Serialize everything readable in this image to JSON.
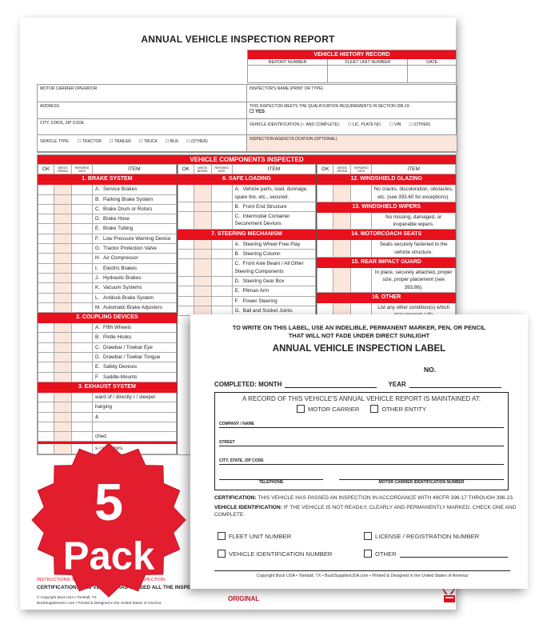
{
  "report": {
    "title": "ANNUAL VEHICLE INSPECTION REPORT",
    "history": {
      "title": "VEHICLE HISTORY RECORD",
      "columns": [
        "REPORT NUMBER",
        "FLEET UNIT NUMBER",
        "DATE"
      ]
    },
    "info": {
      "motor_carrier": "MOTOR CARRIER OPERATOR",
      "inspector_name": "INSPECTOR'S NAME (PRINT OR TYPE)",
      "address": "ADDRESS",
      "qualification": "THIS INSPECTOR MEETS THE QUALIFICATION REQUIREMENTS IN SECTION 396.19.",
      "yes": "YES",
      "city": "CITY, STATE, ZIP CODE",
      "vehicle_id": "VEHICLE IDENTIFICATION (✓ AND COMPLETE):",
      "vehicle_id_options": [
        "LIC. PLATE NO.",
        "VIN",
        "(OTHER)"
      ],
      "vehicle_type": "VEHICLE TYPE:",
      "vehicle_type_options": [
        "TRACTOR",
        "TRAILER",
        "TRUCK",
        "BUS",
        "(OTHER)"
      ],
      "agency": "INSPECTION AGENCY/LOCATION (OPTIONAL)"
    },
    "components": {
      "title": "VEHICLE COMPONENTS INSPECTED",
      "headers": [
        "OK",
        "NEEDS REPAIR",
        "REPAIRED DATE",
        "ITEM"
      ],
      "columns": [
        [
          {
            "h": "1. BRAKE SYSTEM"
          },
          {
            "l": "A.",
            "t": "Service Brakes"
          },
          {
            "l": "B.",
            "t": "Parking Brake System"
          },
          {
            "l": "C.",
            "t": "Brake Drum or Rotors"
          },
          {
            "l": "D.",
            "t": "Brake Hose"
          },
          {
            "l": "E.",
            "t": "Brake Tubing"
          },
          {
            "l": "F.",
            "t": "Low Pressure Warning Device"
          },
          {
            "l": "G.",
            "t": "Tractor Protection Valve"
          },
          {
            "l": "H.",
            "t": "Air Compressor"
          },
          {
            "l": "I.",
            "t": "Electric Brakes"
          },
          {
            "l": "J.",
            "t": "Hydraulic Brakes"
          },
          {
            "l": "K.",
            "t": "Vacuum Systems"
          },
          {
            "l": "L.",
            "t": "Antilock Brake System"
          },
          {
            "l": "M.",
            "t": "Automatic Brake Adjusters"
          },
          {
            "h": "2. COUPLING DEVICES"
          },
          {
            "l": "A.",
            "t": "Fifth Wheels"
          },
          {
            "l": "B.",
            "t": "Pintle Hooks"
          },
          {
            "l": "C.",
            "t": "Drawbar / Towbar Eye"
          },
          {
            "l": "D.",
            "t": "Drawbar / Towbar Tongue"
          },
          {
            "l": "E.",
            "t": "Safety Devices"
          },
          {
            "l": "F.",
            "t": "Saddle-Mounts"
          },
          {
            "h": "3. EXHAUST SYSTEM"
          },
          {
            "l": "",
            "t": "ward of / directly r / sleeper"
          },
          {
            "l": "",
            "t": "harging"
          },
          {
            "l": "",
            "t": "&"
          },
          {
            "l": "",
            "t": ""
          },
          {
            "l": "",
            "t": "ched."
          },
          {
            "h": ""
          },
          {
            "l": "",
            "t": "s / reflectors"
          }
        ],
        [
          {
            "h": "6. SAFE LOADING"
          },
          {
            "l": "A.",
            "t": "Vehicle parts, load, dunnage, spare tire, etc., secured."
          },
          {
            "l": "B.",
            "t": "Front End Structure"
          },
          {
            "l": "C.",
            "t": "Intermodal Container Securement Devices"
          },
          {
            "h": "7. STEERING MECHANISM"
          },
          {
            "l": "A.",
            "t": "Steering Wheel Free Play"
          },
          {
            "l": "B.",
            "t": "Steering Column"
          },
          {
            "l": "C.",
            "t": "Front Axle Beam / All Other Steering Components"
          },
          {
            "l": "D.",
            "t": "Steering Gear Box"
          },
          {
            "l": "E.",
            "t": "Pitman Arm"
          },
          {
            "l": "F.",
            "t": "Power Steering"
          },
          {
            "l": "G.",
            "t": "Ball and Socket Joints"
          }
        ],
        [
          {
            "h": "12. WINDSHIELD GLAZING"
          },
          {
            "c": "No cracks, discoloration, obstacles, etc. (see 393.60 for exceptions)."
          },
          {
            "h": "13. WINDSHIELD WIPERS"
          },
          {
            "c": "No missing, damaged, or inoperable wipers."
          },
          {
            "h": "14. MOTORCOACH SEATS"
          },
          {
            "c": "Seats securely fastened to the vehicle structure."
          },
          {
            "h": "15. REAR IMPACT GUARD"
          },
          {
            "c": "In place, securely attached, proper size, proper placement (see 393.86)."
          },
          {
            "h": "16. OTHER"
          },
          {
            "c": "List any other condition(s) which may prevent safe"
          }
        ]
      ]
    },
    "instructions": "INSTRUCTIONS: MARK COLU...RIES TO VERIFY INSPECTION:",
    "certification": "CERTIFICATION: THIS VEHICLE HAS PASSED ALL THE INSPECTION ITEMS FOR THE ANNUAL VEHICLE INSPECTION IN ACCORDANCE WITH 49 CFR PART 396.",
    "copyright1": "© Copyright Buck USA • Tomball, TX",
    "copyright2": "BuckSuppliesUSA.com • Printed & Designed in the United States of America",
    "copy_label": "ORIGINAL"
  },
  "label": {
    "warning1": "TO WRITE ON THIS LABEL, USE AN INDELIBLE, PERMANENT MARKER, PEN, OR PENCIL",
    "warning2": "THAT WILL NOT FADE UNDER DIRECT SUNLIGHT",
    "title": "ANNUAL VEHICLE INSPECTION LABEL",
    "no": "NO.",
    "completed_month": "COMPLETED: MONTH",
    "year": "YEAR",
    "record_heading": "A RECORD OF THIS VEHICLE'S ANNUAL VEHICLE REPORT IS MAINTAINED AT:",
    "motor_carrier": "MOTOR CARRIER",
    "other_entity": "OTHER ENTITY",
    "company": "COMPANY / NAME",
    "street": "STREET",
    "city": "CITY, STATE, ZIP CODE",
    "telephone": "TELEPHONE",
    "mc_id": "MOTOR CARRIER IDENTIFICATION NUMBER",
    "cert_label": "CERTIFICATION:",
    "cert_text": " THIS VEHICLE HAS PASSED AN INSPECTION IN ACCORDANCE WITH 49CFR 396.17 THROUGH 396.23.",
    "vid_label": "VEHICLE IDENTIFICATION:",
    "vid_text": " IF THE VEHICLE IS NOT READILY, CLEARLY AND PERMANENTLY MARKED, CHECK ONE AND COMPLETE.",
    "options": [
      "FLEET UNIT NUMBER",
      "LICENSE / REGISTRATION NUMBER",
      "VEHICLE IDENTIFICATION NUMBER",
      "OTHER"
    ],
    "footer": "Copyright Buck USA • Tomball, TX • BuckSuppliesUSA.com • Printed & Designed in the United States of America"
  },
  "badge": {
    "number": "5",
    "text": "Pack"
  },
  "colors": {
    "accent": "#e8101c",
    "peach": "#fbe6dc",
    "badge": "#e11d2e"
  }
}
